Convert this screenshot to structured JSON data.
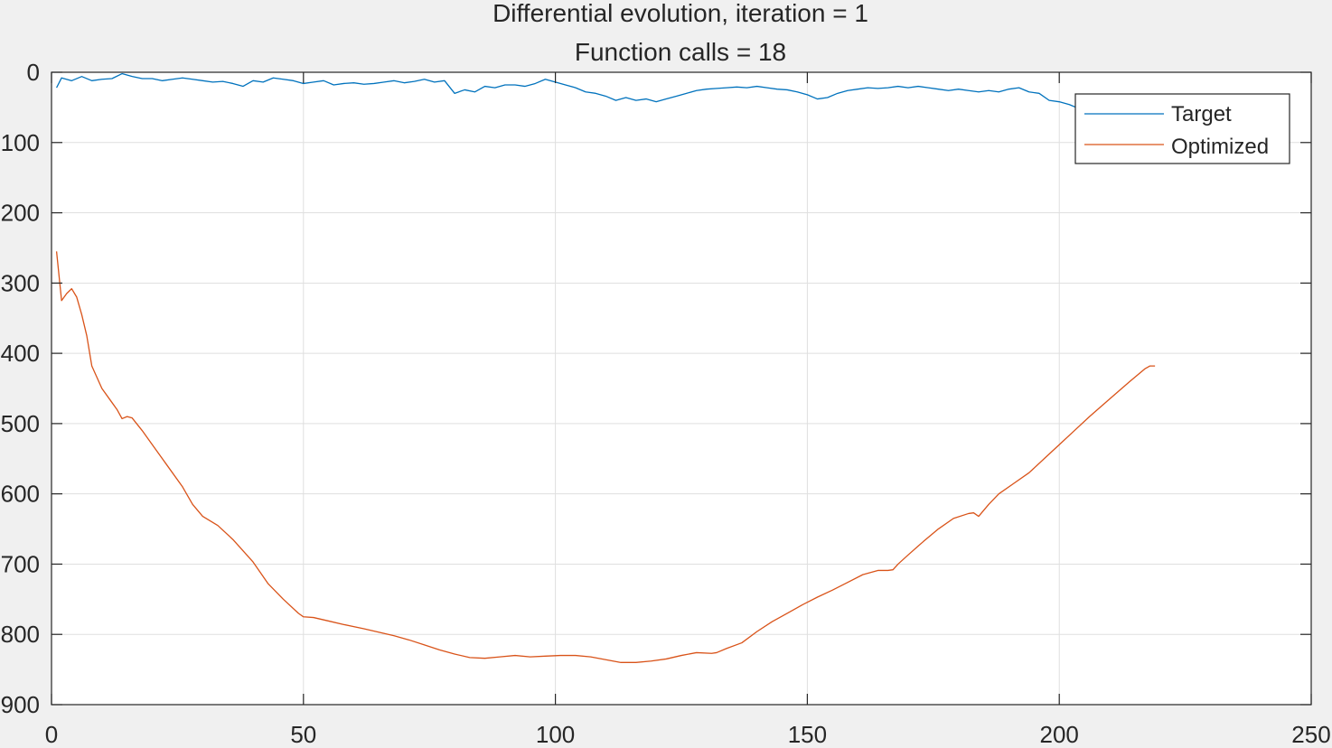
{
  "chart_data": {
    "type": "line",
    "title": "Differential evolution, iteration = 1",
    "subtitle": "Function calls = 18",
    "xlabel": "",
    "ylabel": "",
    "xlim": [
      0,
      250
    ],
    "ylim": [
      0,
      900
    ],
    "y_reversed": true,
    "grid": true,
    "legend_position": "top-right",
    "x_ticks": [
      0,
      50,
      100,
      150,
      200,
      250
    ],
    "y_ticks": [
      0,
      100,
      200,
      300,
      400,
      500,
      600,
      700,
      800,
      900
    ],
    "x_tick_labels": [
      "0",
      "50",
      "100",
      "150",
      "200",
      "250"
    ],
    "y_tick_labels": [
      "0",
      "100",
      "200",
      "300",
      "400",
      "500",
      "600",
      "700",
      "800",
      "900"
    ],
    "series": [
      {
        "name": "Target",
        "color": "#0072bd",
        "x": [
          1,
          2,
          4,
          6,
          8,
          10,
          12,
          14,
          16,
          18,
          20,
          22,
          24,
          26,
          28,
          30,
          32,
          34,
          36,
          38,
          40,
          42,
          44,
          46,
          48,
          50,
          52,
          54,
          56,
          58,
          60,
          62,
          64,
          66,
          68,
          70,
          72,
          74,
          76,
          78,
          80,
          82,
          84,
          86,
          88,
          90,
          92,
          94,
          96,
          98,
          100,
          102,
          104,
          106,
          108,
          110,
          112,
          114,
          116,
          118,
          120,
          122,
          124,
          126,
          128,
          130,
          132,
          134,
          136,
          138,
          140,
          142,
          144,
          146,
          148,
          150,
          152,
          154,
          156,
          158,
          160,
          162,
          164,
          166,
          168,
          170,
          172,
          174,
          176,
          178,
          180,
          182,
          184,
          186,
          188,
          190,
          192,
          194,
          196,
          198,
          200,
          202,
          204,
          206
        ],
        "y": [
          22,
          8,
          12,
          6,
          12,
          10,
          9,
          2,
          6,
          9,
          9,
          12,
          10,
          8,
          10,
          12,
          14,
          13,
          16,
          20,
          12,
          14,
          8,
          10,
          12,
          16,
          14,
          12,
          18,
          16,
          15,
          17,
          16,
          14,
          12,
          15,
          13,
          10,
          14,
          12,
          30,
          25,
          28,
          20,
          22,
          18,
          18,
          20,
          16,
          10,
          14,
          18,
          22,
          28,
          30,
          34,
          40,
          36,
          40,
          38,
          42,
          38,
          34,
          30,
          26,
          24,
          23,
          22,
          21,
          22,
          20,
          22,
          24,
          25,
          28,
          32,
          38,
          36,
          30,
          26,
          24,
          22,
          23,
          22,
          20,
          22,
          20,
          22,
          24,
          26,
          24,
          26,
          28,
          26,
          28,
          24,
          22,
          28,
          30,
          40,
          42,
          46,
          52,
          56
        ]
      },
      {
        "name": "Optimized",
        "color": "#d95319",
        "x": [
          1,
          2,
          3,
          4,
          5,
          6,
          7,
          8,
          10,
          12,
          13,
          14,
          15,
          16,
          18,
          20,
          23,
          26,
          28,
          30,
          33,
          36,
          40,
          43,
          46,
          49,
          50,
          52,
          55,
          58,
          62,
          65,
          68,
          71,
          74,
          77,
          80,
          83,
          86,
          89,
          92,
          95,
          98,
          101,
          104,
          107,
          110,
          113,
          116,
          119,
          122,
          125,
          128,
          131,
          132,
          134,
          137,
          140,
          143,
          146,
          149,
          152,
          155,
          158,
          161,
          164,
          166,
          167,
          168,
          170,
          173,
          176,
          179,
          182,
          183,
          184,
          186,
          188,
          191,
          194,
          197,
          200,
          203,
          206,
          210,
          214,
          217,
          218,
          219
        ],
        "y": [
          255,
          325,
          315,
          308,
          320,
          345,
          375,
          418,
          450,
          470,
          480,
          493,
          490,
          492,
          510,
          530,
          560,
          590,
          615,
          632,
          645,
          665,
          697,
          728,
          750,
          770,
          775,
          776,
          781,
          786,
          792,
          797,
          802,
          808,
          815,
          822,
          828,
          833,
          834,
          832,
          830,
          832,
          831,
          830,
          830,
          832,
          836,
          840,
          840,
          838,
          835,
          830,
          826,
          827,
          826,
          820,
          812,
          796,
          782,
          770,
          758,
          747,
          737,
          726,
          715,
          709,
          709,
          708,
          700,
          687,
          668,
          650,
          635,
          628,
          627,
          632,
          615,
          600,
          585,
          570,
          550,
          530,
          510,
          490,
          465,
          440,
          422,
          418,
          418
        ]
      }
    ]
  }
}
